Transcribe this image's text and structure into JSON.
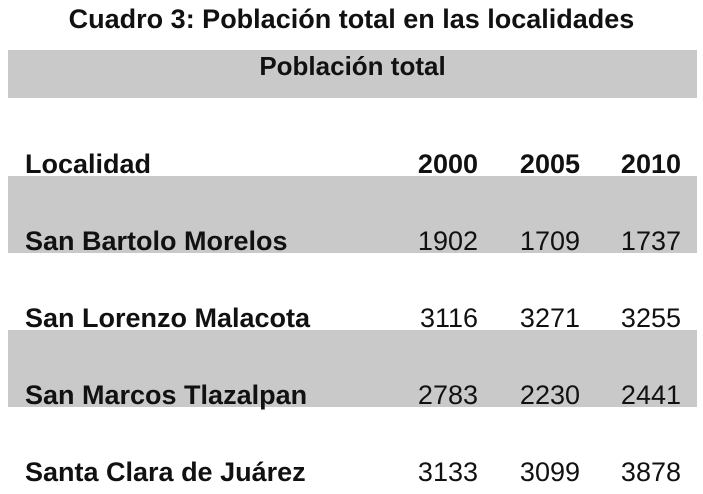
{
  "title": "Cuadro 3: Población total en las localidades",
  "table": {
    "group_header": "Población total",
    "columns": [
      "Localidad",
      "2000",
      "2005",
      "2010"
    ],
    "rows": [
      [
        "San Bartolo Morelos",
        1902,
        1709,
        1737
      ],
      [
        "San Lorenzo Malacota",
        3116,
        3271,
        3255
      ],
      [
        "San Marcos Tlazalpan",
        2783,
        2230,
        2441
      ],
      [
        "Santa Clara de Juárez",
        3133,
        3099,
        3878
      ]
    ]
  }
}
